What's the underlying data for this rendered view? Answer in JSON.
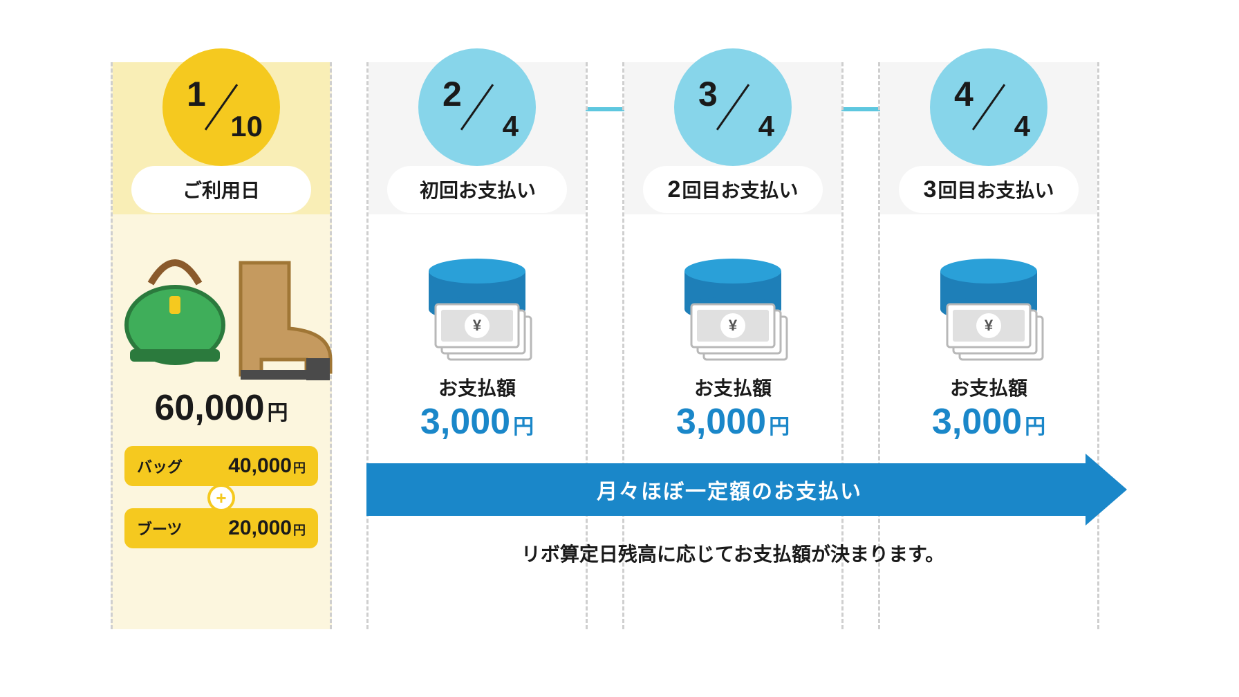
{
  "colors": {
    "yellow": "#f5c91f",
    "yellow_light": "#fcf6de",
    "yellow_band": "#f9eeb6",
    "blue_circle": "#87d5ea",
    "blue_accent": "#1a87c9",
    "blue_dark": "#1b6fb0",
    "grey_band": "#f5f5f5",
    "dash": "#cfcfcf",
    "text": "#1a1a1a",
    "bag_green": "#3fae5a",
    "bag_handle": "#8a5a2b",
    "boot": "#c59a5f",
    "boot_heel": "#4a4a4a",
    "bill_border": "#b8b8b8",
    "bill_fill": "#ffffff",
    "bill_inner": "#e0e0e0",
    "cyl_top": "#2aa0d8",
    "cyl_side": "#1e7fb8"
  },
  "purchase": {
    "date_num": "1",
    "date_den": "10",
    "pill": "ご利用日",
    "total_amount": "60,000",
    "yen": "円",
    "items": [
      {
        "name": "バッグ",
        "price": "40,000"
      },
      {
        "name": "ブーツ",
        "price": "20,000"
      }
    ]
  },
  "payments": [
    {
      "date_num": "2",
      "date_den": "4",
      "pill_prefix": "",
      "pill": "初回お支払い",
      "label": "お支払額",
      "amount": "3,000"
    },
    {
      "date_num": "3",
      "date_den": "4",
      "pill_prefix": "2",
      "pill": "回目お支払い",
      "label": "お支払額",
      "amount": "3,000"
    },
    {
      "date_num": "4",
      "date_den": "4",
      "pill_prefix": "3",
      "pill": "回目お支払い",
      "label": "お支払額",
      "amount": "3,000"
    }
  ],
  "arrow_text": "月々ほぼ一定額のお支払い",
  "footnote": "リボ算定日残高に応じてお支払額が決まります。",
  "yen": "円",
  "plus": "+"
}
